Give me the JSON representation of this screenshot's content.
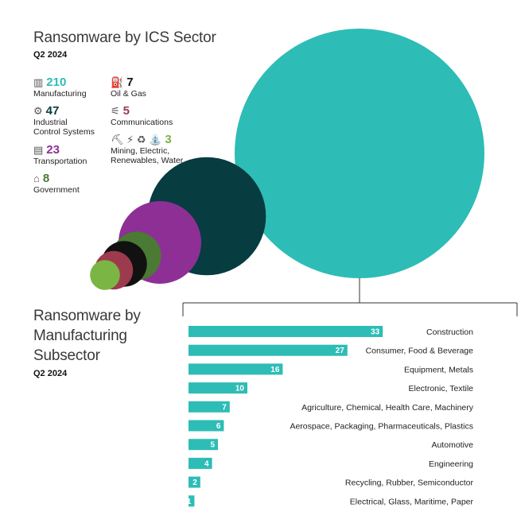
{
  "titles": {
    "sector_title": "Ransomware by ICS Sector",
    "sector_period": "Q2 2024",
    "subsector_title_lines": [
      "Ransomware by",
      "Manufacturing",
      "Subsector"
    ],
    "subsector_period": "Q2 2024"
  },
  "colors": {
    "teal": "#2ebcb6",
    "dark_teal": "#073c41",
    "purple": "#8e2f96",
    "crimson": "#9e3a4e",
    "black": "#111111",
    "green": "#4a7a34",
    "lime": "#7bb544"
  },
  "legend": [
    {
      "icon": "factory-icon",
      "glyph": "▥",
      "count": "210",
      "label_lines": [
        "Manufacturing"
      ],
      "color": "#2ebcb6"
    },
    {
      "icon": "oil-rig-icon",
      "glyph": "⛽",
      "count": "7",
      "label_lines": [
        "Oil & Gas"
      ],
      "color": "#111111"
    },
    {
      "icon": "gear-cog-icon",
      "glyph": "⚙",
      "count": "47",
      "label_lines": [
        "Industrial",
        "Control Systems"
      ],
      "color": "#073c41"
    },
    {
      "icon": "antenna-icon",
      "glyph": "⚟",
      "count": "5",
      "label_lines": [
        "Communications"
      ],
      "color": "#9e3a4e"
    },
    {
      "icon": "train-icon",
      "glyph": "▤",
      "count": "23",
      "label_lines": [
        "Transportation"
      ],
      "color": "#8e2f96"
    },
    {
      "icon": "utilities-icons",
      "glyph": "⛏ ⚡ ♻ ⛲",
      "count": "3",
      "label_lines": [
        "Mining, Electric,",
        "Renewables, Water"
      ],
      "color": "#7bb544"
    },
    {
      "icon": "government-building-icon",
      "glyph": "⌂",
      "count": "8",
      "label_lines": [
        "Government"
      ],
      "color": "#4a7a34"
    }
  ],
  "chart_data": [
    {
      "type": "bubble",
      "title": "Ransomware by ICS Sector",
      "subtitle": "Q2 2024",
      "series": [
        {
          "name": "Manufacturing",
          "value": 210,
          "color": "#2ebcb6"
        },
        {
          "name": "Industrial Control Systems",
          "value": 47,
          "color": "#073c41"
        },
        {
          "name": "Transportation",
          "value": 23,
          "color": "#8e2f96"
        },
        {
          "name": "Government",
          "value": 8,
          "color": "#4a7a34"
        },
        {
          "name": "Oil & Gas",
          "value": 7,
          "color": "#111111"
        },
        {
          "name": "Communications",
          "value": 5,
          "color": "#9e3a4e"
        },
        {
          "name": "Mining, Electric, Renewables, Water",
          "value": 3,
          "color": "#7bb544"
        }
      ]
    },
    {
      "type": "bar",
      "orientation": "horizontal",
      "title": "Ransomware by Manufacturing Subsector",
      "subtitle": "Q2 2024",
      "categories": [
        "Construction",
        "Consumer, Food & Beverage",
        "Equipment, Metals",
        "Electronic, Textile",
        "Agriculture, Chemical, Health Care, Machinery",
        "Aerospace, Packaging, Pharmaceuticals, Plastics",
        "Automotive",
        "Engineering",
        "Recycling, Rubber, Semiconductor",
        "Electrical, Glass, Maritime, Paper"
      ],
      "values": [
        33,
        27,
        16,
        10,
        7,
        6,
        5,
        4,
        2,
        1
      ],
      "color": "#2ebcb6"
    }
  ]
}
